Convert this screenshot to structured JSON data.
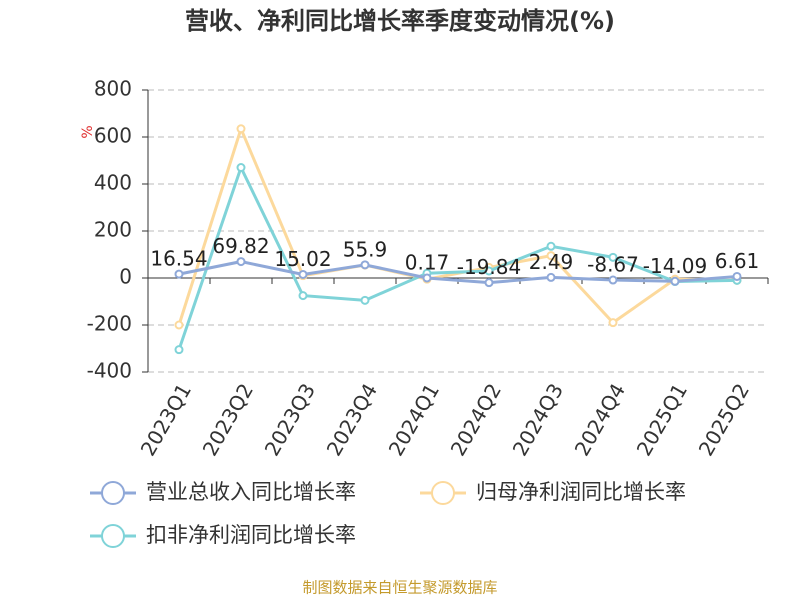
{
  "chart_data": {
    "type": "line",
    "title": "营收、净利同比增长率季度变动情况(%)",
    "y_label": "%",
    "footer": "制图数据来自恒生聚源数据库",
    "categories": [
      "2023Q1",
      "2023Q2",
      "2023Q3",
      "2023Q4",
      "2024Q1",
      "2024Q2",
      "2024Q3",
      "2024Q4",
      "2025Q1",
      "2025Q2"
    ],
    "series": [
      {
        "name": "营业总收入同比增长率",
        "color": "#8fa8d8",
        "values": [
          16.54,
          69.82,
          15.02,
          55.9,
          0.17,
          -19.84,
          2.49,
          -8.67,
          -14.09,
          6.61
        ]
      },
      {
        "name": "归母净利润同比增长率",
        "color": "#fcd99c",
        "values": [
          -200,
          635,
          10,
          55,
          -5,
          45,
          95,
          -190,
          -5,
          -10
        ]
      },
      {
        "name": "扣非净利润同比增长率",
        "color": "#7fd3d8",
        "values": [
          -305,
          470,
          -75,
          -95,
          20,
          30,
          135,
          88,
          -15,
          -10
        ]
      }
    ],
    "ylim": [
      -400,
      800
    ],
    "yticks": [
      -400,
      -200,
      0,
      200,
      400,
      600,
      800
    ],
    "grid": true
  }
}
